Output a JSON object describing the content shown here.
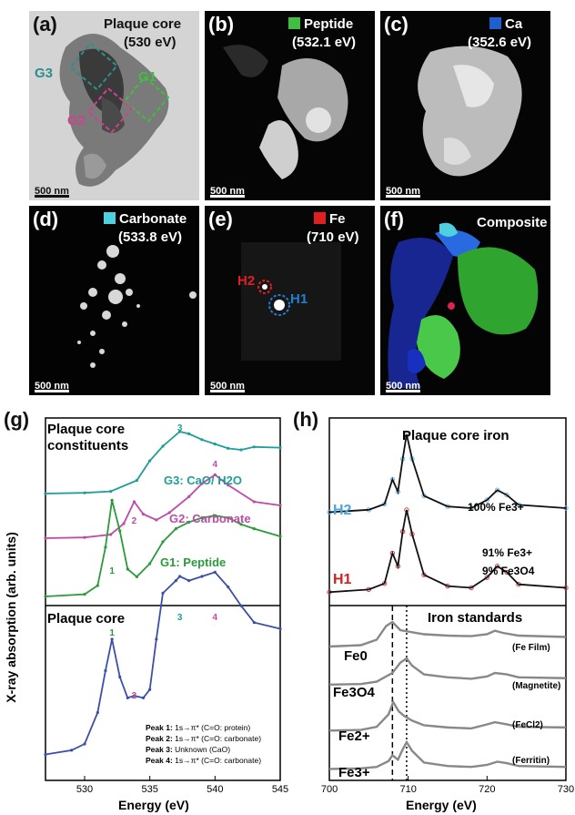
{
  "panels": {
    "a": {
      "letter": "(a)",
      "title": "Plaque core",
      "energy": "(530 eV)",
      "roi": [
        "G3",
        "G1",
        "G2"
      ],
      "scale": "500 nm"
    },
    "b": {
      "letter": "(b)",
      "title": "Peptide",
      "energy": "(532.1 eV)",
      "scale": "500 nm",
      "swatch": "#3fbf3f"
    },
    "c": {
      "letter": "(c)",
      "title": "Ca",
      "energy": "(352.6 eV)",
      "scale": "500 nm",
      "swatch": "#1f5fd0"
    },
    "d": {
      "letter": "(d)",
      "title": "Carbonate",
      "energy": "(533.8 eV)",
      "scale": "500 nm",
      "swatch": "#4fd0e0"
    },
    "e": {
      "letter": "(e)",
      "title": "Fe",
      "energy": "(710 eV)",
      "roi": [
        "H2",
        "H1"
      ],
      "scale": "500 nm",
      "swatch": "#e02020"
    },
    "f": {
      "letter": "(f)",
      "title": "Composite",
      "scale": "500 nm"
    }
  },
  "g": {
    "letter": "(g)",
    "top_title_1": "Plaque core",
    "top_title_2": "constituents",
    "bottom_title": "Plaque core",
    "ylabel": "X-ray absorption (arb. units)",
    "xlabel": "Energy (eV)",
    "series": [
      {
        "name": "G3: CaO/ H2O",
        "color": "#1f9e97"
      },
      {
        "name": "G2: Carbonate",
        "color": "#c04aa8"
      },
      {
        "name": "G1: Peptide",
        "color": "#2a9a3a"
      },
      {
        "name": "Plaque core",
        "color": "#3b4fa8"
      }
    ],
    "peak_labels": [
      "1",
      "2",
      "3",
      "4"
    ],
    "legend": [
      {
        "k": "Peak 1:",
        "v": "1s→π* (C=O: protein)"
      },
      {
        "k": "Peak 2:",
        "v": "1s→π* (C=O: carbonate)"
      },
      {
        "k": "Peak 3:",
        "v": "Unknown (CaO)"
      },
      {
        "k": "Peak 4:",
        "v": "1s→π* (C=O: carbonate)"
      }
    ],
    "ticks": [
      "530",
      "535",
      "540",
      "545"
    ]
  },
  "h": {
    "letter": "(h)",
    "top_title": "Plaque core iron",
    "bottom_title": "Iron standards",
    "xlabel": "Energy (eV)",
    "h2": {
      "name": "H2",
      "ann": "100% Fe3+"
    },
    "h1": {
      "name": "H1",
      "ann1": "91% Fe3+",
      "ann2": "9% Fe3O4"
    },
    "standards": [
      {
        "name": "Fe0",
        "desc": "(Fe Film)"
      },
      {
        "name": "Fe3O4",
        "desc": "(Magnetite)"
      },
      {
        "name": "Fe2+",
        "desc": "(FeCl2)"
      },
      {
        "name": "Fe3+",
        "desc": "(Ferritin)"
      }
    ],
    "ticks": [
      "700",
      "710",
      "720",
      "730"
    ]
  },
  "chart_data": [
    {
      "type": "line",
      "title": "",
      "xlabel": "Energy (eV)",
      "ylabel": "X-ray absorption (arb. units)",
      "xlim": [
        527,
        545
      ],
      "series": [
        {
          "name": "G3: CaO/ H2O",
          "x": [
            527,
            530,
            532,
            534,
            535,
            536,
            537.3,
            538,
            539,
            540,
            541,
            542,
            543,
            545
          ],
          "y": [
            0.1,
            0.11,
            0.13,
            0.28,
            0.55,
            0.75,
            0.95,
            0.92,
            0.84,
            0.78,
            0.72,
            0.7,
            0.74,
            0.73
          ]
        },
        {
          "name": "G2: Carbonate",
          "x": [
            527,
            530,
            532,
            533,
            533.8,
            534.5,
            535.5,
            536.5,
            538,
            539,
            540,
            541,
            543,
            545
          ],
          "y": [
            0.05,
            0.06,
            0.1,
            0.25,
            0.55,
            0.38,
            0.3,
            0.4,
            0.62,
            0.8,
            0.92,
            0.78,
            0.55,
            0.5
          ]
        },
        {
          "name": "G1: Peptide",
          "x": [
            527,
            530,
            531,
            531.6,
            532.1,
            532.7,
            533.3,
            534,
            535,
            536,
            537,
            538,
            539,
            540,
            541,
            542,
            543,
            545
          ],
          "y": [
            0.0,
            0.02,
            0.1,
            0.45,
            0.88,
            0.6,
            0.25,
            0.18,
            0.3,
            0.5,
            0.62,
            0.68,
            0.72,
            0.74,
            0.72,
            0.66,
            0.62,
            0.55
          ]
        },
        {
          "name": "Plaque core",
          "x": [
            527,
            529,
            530,
            531,
            531.6,
            532.1,
            532.7,
            533.3,
            533.8,
            534.5,
            535,
            535.5,
            536,
            537,
            537.3,
            538,
            539,
            540,
            541,
            542,
            543,
            545
          ],
          "y": [
            0.05,
            0.07,
            0.1,
            0.25,
            0.45,
            0.6,
            0.42,
            0.32,
            0.33,
            0.32,
            0.36,
            0.6,
            0.82,
            0.88,
            0.9,
            0.88,
            0.9,
            0.92,
            0.85,
            0.76,
            0.68,
            0.65
          ]
        }
      ]
    },
    {
      "type": "line",
      "title": "",
      "xlabel": "Energy (eV)",
      "ylabel": "",
      "xlim": [
        700,
        730
      ],
      "series": [
        {
          "name": "H2",
          "x": [
            700,
            705,
            707,
            708,
            708.7,
            709.3,
            709.8,
            710.5,
            712,
            715,
            718,
            720,
            721.3,
            722.5,
            724,
            730
          ],
          "y": [
            0.05,
            0.08,
            0.15,
            0.45,
            0.3,
            0.7,
            1.0,
            0.7,
            0.25,
            0.12,
            0.1,
            0.2,
            0.32,
            0.26,
            0.14,
            0.1
          ]
        },
        {
          "name": "H1",
          "x": [
            700,
            705,
            707,
            708,
            708.7,
            709.3,
            709.8,
            710.5,
            712,
            715,
            718,
            720,
            721.3,
            722.5,
            724,
            730
          ],
          "y": [
            0.05,
            0.08,
            0.15,
            0.5,
            0.35,
            0.75,
            1.0,
            0.72,
            0.25,
            0.12,
            0.1,
            0.22,
            0.35,
            0.28,
            0.14,
            0.1
          ]
        },
        {
          "name": "Fe0",
          "x": [
            700,
            704,
            706,
            707.2,
            708,
            709,
            712,
            715,
            718,
            720,
            721,
            722,
            724,
            730
          ],
          "y": [
            0.1,
            0.15,
            0.35,
            0.85,
            1.0,
            0.7,
            0.55,
            0.5,
            0.48,
            0.55,
            0.68,
            0.6,
            0.5,
            0.45
          ]
        },
        {
          "name": "Fe3O4",
          "x": [
            700,
            704,
            706,
            708,
            709,
            709.8,
            710.5,
            712,
            715,
            718,
            720,
            721,
            722.5,
            724,
            730
          ],
          "y": [
            0.1,
            0.12,
            0.2,
            0.5,
            0.85,
            1.0,
            0.75,
            0.45,
            0.35,
            0.3,
            0.38,
            0.5,
            0.45,
            0.35,
            0.32
          ]
        },
        {
          "name": "Fe2+",
          "x": [
            700,
            704,
            706,
            707.5,
            708.1,
            708.8,
            709.5,
            710.5,
            712,
            715,
            718,
            720,
            721,
            722.5,
            724,
            730
          ],
          "y": [
            0.08,
            0.1,
            0.2,
            0.6,
            1.0,
            0.7,
            0.55,
            0.4,
            0.25,
            0.18,
            0.15,
            0.28,
            0.35,
            0.28,
            0.2,
            0.18
          ]
        },
        {
          "name": "Fe3+",
          "x": [
            700,
            704,
            706,
            707.5,
            708,
            708.7,
            709.3,
            709.8,
            710.5,
            712,
            715,
            718,
            720,
            721.3,
            722.5,
            724,
            730
          ],
          "y": [
            0.08,
            0.1,
            0.15,
            0.35,
            0.55,
            0.4,
            0.75,
            1.0,
            0.7,
            0.3,
            0.18,
            0.15,
            0.22,
            0.33,
            0.28,
            0.18,
            0.15
          ]
        }
      ]
    }
  ]
}
